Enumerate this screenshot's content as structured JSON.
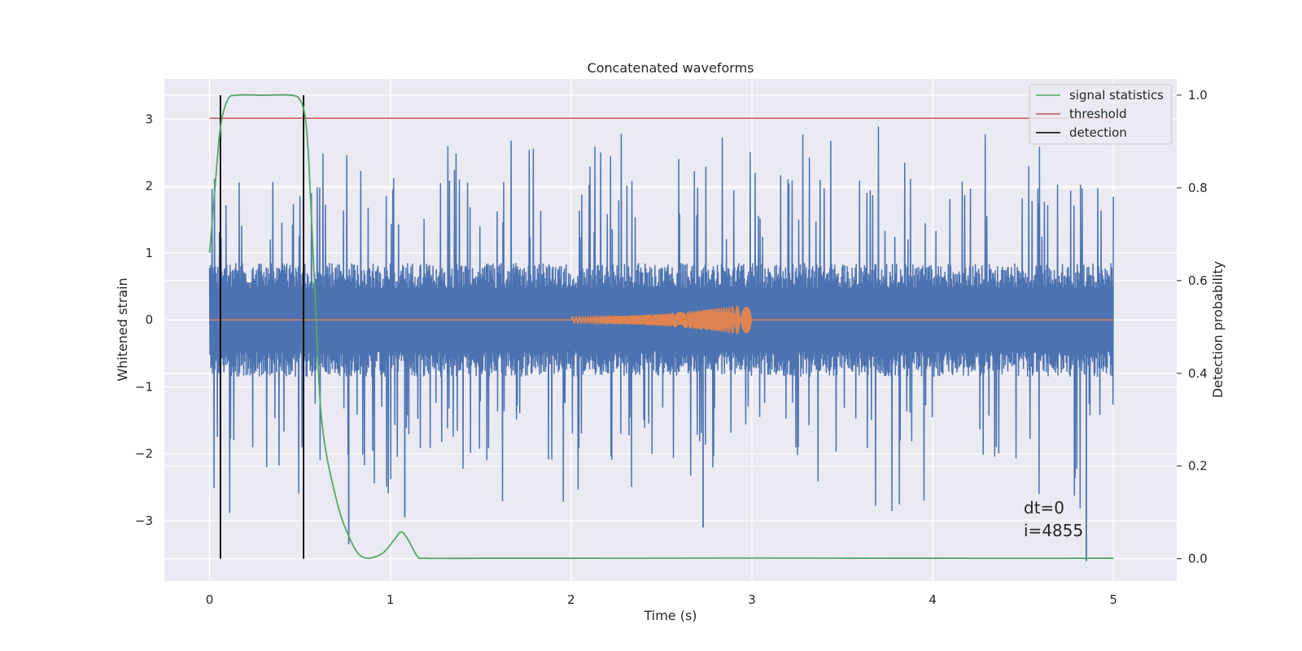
{
  "chart_data": {
    "type": "line",
    "title": "Concatenated waveforms",
    "xlabel": "Time (s)",
    "ylabel_left": "Whitened strain",
    "ylabel_right": "Detection probability",
    "xlim": [
      -0.25,
      5.35
    ],
    "ylim_left": [
      -3.9,
      3.6
    ],
    "ylim_right": [
      -0.048,
      1.035
    ],
    "x_ticks": [
      0,
      1,
      2,
      3,
      4,
      5
    ],
    "x_tick_labels": [
      "0",
      "1",
      "2",
      "3",
      "4",
      "5"
    ],
    "y_left_ticks": [
      -3,
      -2,
      -1,
      0,
      1,
      2,
      3
    ],
    "y_left_tick_labels": [
      "−3",
      "−2",
      "−1",
      "0",
      "1",
      "2",
      "3"
    ],
    "y_right_ticks": [
      0.0,
      0.2,
      0.4,
      0.6,
      0.8,
      1.0
    ],
    "y_right_tick_labels": [
      "0.0",
      "0.2",
      "0.4",
      "0.6",
      "0.8",
      "1.0"
    ],
    "grid": true,
    "legend_position": "top-right",
    "series": [
      {
        "key": "strain",
        "axis": "left",
        "color": "#4c72b0",
        "x_range": [
          0,
          5
        ],
        "typical_amplitude": 0.85,
        "peak_amplitude": 2.9,
        "deep_dips": [
          [
            0.06,
            -2.9
          ],
          [
            0.77,
            -3.35
          ],
          [
            1.08,
            -2.95
          ],
          [
            2.73,
            -3.1
          ],
          [
            4.85,
            -3.6
          ]
        ]
      },
      {
        "key": "injected_signal",
        "axis": "left",
        "color": "#dd8452",
        "x_range": [
          2.0,
          3.0
        ],
        "start_amplitude": 0.05,
        "end_amplitude": 0.25,
        "flat_line_x_range": [
          0,
          5
        ],
        "flat_line_value": 0
      },
      {
        "name": "signal statistics",
        "axis": "right",
        "color": "#55a868",
        "x": [
          0.0,
          0.03,
          0.06,
          0.1,
          0.15,
          0.3,
          0.45,
          0.5,
          0.53,
          0.55,
          0.58,
          0.62,
          0.7,
          0.78,
          0.85,
          0.95,
          1.02,
          1.06,
          1.1,
          1.15,
          1.2,
          1.5,
          2.0,
          3.0,
          4.0,
          5.0
        ],
        "y": [
          0.66,
          0.8,
          0.93,
          0.99,
          1.0,
          1.0,
          1.0,
          0.99,
          0.95,
          0.85,
          0.6,
          0.3,
          0.13,
          0.04,
          0.003,
          0.01,
          0.04,
          0.058,
          0.04,
          0.005,
          0.001,
          0.001,
          0.001,
          0.0015,
          0.001,
          0.001
        ]
      },
      {
        "name": "threshold",
        "axis": "right",
        "color": "#c44e52",
        "x": [
          0,
          5
        ],
        "y": [
          0.95,
          0.95
        ]
      },
      {
        "name": "detection",
        "axis": "right",
        "color": "#000000",
        "x_positions": [
          0.06,
          0.52
        ],
        "y_range": [
          0,
          1.0
        ]
      }
    ],
    "annotations": [
      "dt=0",
      "i=4855"
    ]
  }
}
